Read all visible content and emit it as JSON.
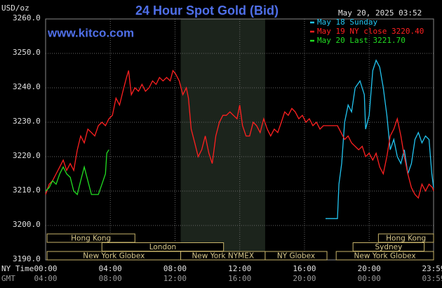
{
  "chart_data": {
    "type": "line",
    "title": "24 Hour Spot Gold (Bid)",
    "timestamp": "May 20, 2025 03:52",
    "watermark": "www.kitco.com",
    "y_label": "USD/oz",
    "x_label": "NY Time",
    "x2_label": "GMT",
    "xlim": [
      0,
      23.98
    ],
    "xticks": [
      {
        "value": 0,
        "label": "00:00"
      },
      {
        "value": 4,
        "label": "04:00"
      },
      {
        "value": 8,
        "label": "08:00"
      },
      {
        "value": 12,
        "label": "12:00"
      },
      {
        "value": 16,
        "label": "16:00"
      },
      {
        "value": 20,
        "label": "20:00"
      },
      {
        "value": 23.98,
        "label": "23:59"
      }
    ],
    "x2tick_labels": [
      "04:00",
      "08:00",
      "12:00",
      "16:00",
      "20:00",
      "00:00",
      "03:59"
    ],
    "ylim": [
      3190,
      3260
    ],
    "yticks": [
      {
        "value": 3190,
        "label": "3190.0"
      },
      {
        "value": 3200,
        "label": "3200.0"
      },
      {
        "value": 3210,
        "label": "3210.0"
      },
      {
        "value": 3220,
        "label": "3220.0"
      },
      {
        "value": 3230,
        "label": "3230.0"
      },
      {
        "value": 3240,
        "label": "3240.0"
      },
      {
        "value": 3250,
        "label": "3250.0"
      },
      {
        "value": 3260,
        "label": "3260.0"
      }
    ],
    "grid": true,
    "shaded_region": [
      8.35,
      13.57
    ],
    "series": [
      {
        "name": "May 18 Sunday",
        "color": "#22c4f0",
        "x": [
          17.3,
          18.04,
          18.13,
          18.3,
          18.48,
          18.7,
          18.91,
          19.13,
          19.43,
          19.7,
          19.78,
          20.0,
          20.22,
          20.43,
          20.65,
          20.87,
          21.09,
          21.3,
          21.52,
          21.74,
          21.96,
          22.17,
          22.39,
          22.61,
          22.83,
          23.04,
          23.26,
          23.48,
          23.7,
          23.87,
          23.98
        ],
        "values": [
          3202,
          3202,
          3212,
          3218,
          3230,
          3235,
          3233,
          3240,
          3242,
          3238,
          3228,
          3232,
          3245,
          3248,
          3246,
          3240,
          3232,
          3222,
          3225,
          3220,
          3218,
          3222,
          3215,
          3218,
          3225,
          3227,
          3224,
          3226,
          3225,
          3215,
          3211
        ]
      },
      {
        "name": "May 19 NY close 3220.40",
        "color": "#ff2020",
        "x": [
          0,
          0.22,
          0.43,
          0.65,
          0.87,
          1.09,
          1.3,
          1.52,
          1.74,
          1.96,
          2.17,
          2.39,
          2.61,
          2.83,
          3.04,
          3.26,
          3.48,
          3.7,
          3.91,
          4.13,
          4.35,
          4.57,
          4.78,
          5.0,
          5.13,
          5.3,
          5.52,
          5.74,
          5.96,
          6.17,
          6.39,
          6.61,
          6.83,
          7.04,
          7.26,
          7.48,
          7.7,
          7.87,
          8.04,
          8.26,
          8.48,
          8.7,
          8.83,
          9.0,
          9.22,
          9.43,
          9.65,
          9.87,
          10.09,
          10.3,
          10.52,
          10.74,
          10.96,
          11.17,
          11.39,
          11.61,
          11.83,
          12.0,
          12.17,
          12.39,
          12.61,
          12.83,
          13.04,
          13.26,
          13.48,
          13.7,
          13.91,
          14.13,
          14.35,
          14.57,
          14.78,
          15.0,
          15.22,
          15.43,
          15.65,
          15.87,
          16.09,
          16.3,
          16.52,
          16.74,
          16.96,
          17.17,
          17.61,
          18.04,
          18.26,
          18.48,
          18.7,
          18.91,
          19.13,
          19.35,
          19.57,
          19.78,
          20.0,
          20.22,
          20.43,
          20.65,
          20.87,
          21.09,
          21.3,
          21.52,
          21.74,
          21.96,
          22.17,
          22.39,
          22.61,
          22.83,
          23.04,
          23.26,
          23.48,
          23.7,
          23.91,
          23.98
        ],
        "values": [
          3209,
          3212,
          3213,
          3215,
          3217,
          3219,
          3216,
          3218,
          3216,
          3222,
          3226,
          3224,
          3228,
          3227,
          3226,
          3229,
          3230,
          3229,
          3231,
          3232,
          3237,
          3235,
          3239,
          3243,
          3245,
          3238,
          3240,
          3239,
          3241,
          3239,
          3240,
          3242,
          3241,
          3243,
          3242,
          3243,
          3242,
          3245,
          3244,
          3242,
          3238,
          3240,
          3237,
          3228,
          3224,
          3220,
          3222,
          3226,
          3221,
          3218,
          3226,
          3230,
          3232,
          3232,
          3233,
          3232,
          3231,
          3235,
          3229,
          3226,
          3226,
          3230,
          3229,
          3227,
          3231,
          3228,
          3226,
          3228,
          3227,
          3230,
          3233,
          3232,
          3234,
          3233,
          3231,
          3232,
          3230,
          3231,
          3229,
          3230,
          3228,
          3229,
          3229,
          3229,
          3227,
          3225,
          3226,
          3224,
          3223,
          3222,
          3223,
          3220,
          3221,
          3219,
          3221,
          3217,
          3215,
          3220,
          3226,
          3228,
          3231,
          3226,
          3220,
          3215,
          3211,
          3209,
          3208,
          3212,
          3210,
          3212,
          3211,
          3210
        ]
      },
      {
        "name": "May 20 Last 3221.70",
        "color": "#22dd22",
        "x": [
          0,
          0.22,
          0.43,
          0.65,
          0.87,
          1.09,
          1.3,
          1.52,
          1.74,
          1.96,
          2.17,
          2.39,
          2.61,
          2.83,
          3.04,
          3.26,
          3.48,
          3.7,
          3.78,
          3.91
        ],
        "values": [
          3210,
          3211,
          3213,
          3212,
          3215,
          3217,
          3215,
          3214,
          3210,
          3209,
          3213,
          3217,
          3213,
          3209,
          3209,
          3209,
          3212,
          3215,
          3221,
          3222
        ]
      }
    ],
    "sessions": [
      {
        "name": "Hong Kong",
        "start": 0.09,
        "end": 5.52,
        "row": 0
      },
      {
        "name": "Hong Kong",
        "start": 20.57,
        "end": 23.98,
        "row": 0
      },
      {
        "name": "London",
        "start": 3.48,
        "end": 11.0,
        "row": 1
      },
      {
        "name": "Sydney",
        "start": 19.0,
        "end": 23.4,
        "row": 1
      },
      {
        "name": "New York Globex",
        "start": 0.09,
        "end": 8.35,
        "row": 2
      },
      {
        "name": "New York NYMEX",
        "start": 8.35,
        "end": 13.57,
        "row": 2
      },
      {
        "name": "NY Globex",
        "start": 13.57,
        "end": 17.39,
        "row": 2
      },
      {
        "name": "New York Globex",
        "start": 17.96,
        "end": 23.98,
        "row": 2
      }
    ]
  }
}
